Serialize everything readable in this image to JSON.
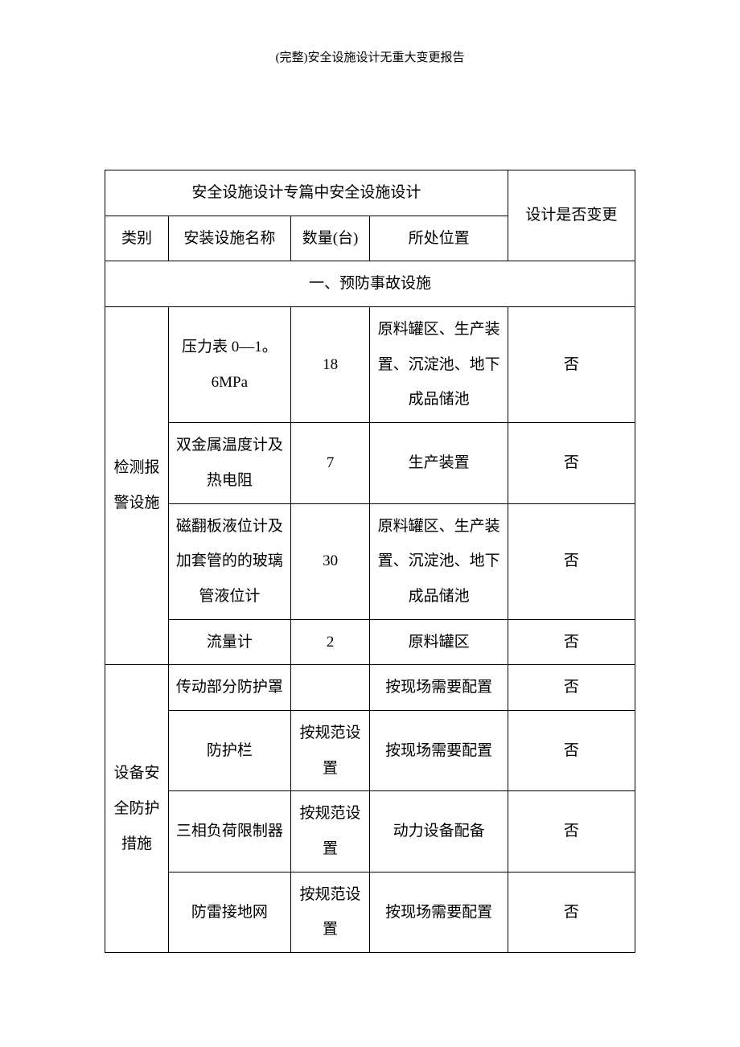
{
  "header": {
    "title": "(完整)安全设施设计无重大变更报告"
  },
  "table": {
    "header_main": "安全设施设计专篇中安全设施设计",
    "header_change": "设计是否变更",
    "columns": {
      "category": "类别",
      "name": "安装设施名称",
      "qty": "数量(台)",
      "location": "所处位置"
    },
    "section1_title": "一、预防事故设施",
    "category1": "检测报警设施",
    "category2": "设备安全防护措施",
    "rows": [
      {
        "name": "压力表 0—1。6MPa",
        "qty": "18",
        "location": "原料罐区、生产装置、沉淀池、地下成品储池",
        "change": "否"
      },
      {
        "name": "双金属温度计及热电阻",
        "qty": "7",
        "location": "生产装置",
        "change": "否"
      },
      {
        "name": "磁翻板液位计及加套管的的玻璃管液位计",
        "qty": "30",
        "location": "原料罐区、生产装置、沉淀池、地下成品储池",
        "change": "否"
      },
      {
        "name": "流量计",
        "qty": "2",
        "location": "原料罐区",
        "change": "否"
      },
      {
        "name": "传动部分防护罩",
        "qty": "",
        "location": "按现场需要配置",
        "change": "否"
      },
      {
        "name": "防护栏",
        "qty": "按规范设置",
        "location": "按现场需要配置",
        "change": "否"
      },
      {
        "name": "三相负荷限制器",
        "qty": "按规范设置",
        "location": "动力设备配备",
        "change": "否"
      },
      {
        "name": "防雷接地网",
        "qty": "按规范设置",
        "location": "按现场需要配置",
        "change": "否"
      }
    ]
  }
}
